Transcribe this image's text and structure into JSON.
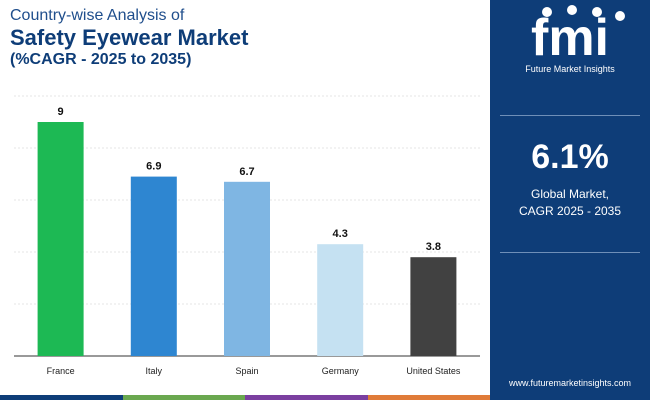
{
  "title": {
    "line1": "Country-wise Analysis of",
    "line2": "Safety Eyewear Market",
    "line3": "(%CAGR - 2025 to 2035)"
  },
  "chart_data": {
    "type": "bar",
    "title": "Country-wise Analysis of Safety Eyewear Market (%CAGR - 2025 to 2035)",
    "categories": [
      "France",
      "Italy",
      "Spain",
      "Germany",
      "United States"
    ],
    "values": [
      9,
      6.9,
      6.7,
      4.3,
      3.8
    ],
    "value_labels": [
      "9",
      "6.9",
      "6.7",
      "4.3",
      "3.8"
    ],
    "colors": [
      "#1db954",
      "#2e86d1",
      "#7fb6e3",
      "#c5e1f2",
      "#414141"
    ],
    "xlabel": "",
    "ylabel": "",
    "ylim": [
      0,
      10
    ],
    "grid": true
  },
  "brand": {
    "logo_text": "fmi",
    "name": "Future Market Insights",
    "url": "www.futuremarketinsights.com"
  },
  "stat": {
    "value": "6.1%",
    "line1": "Global Market,",
    "line2": "CAGR 2025 - 2035"
  },
  "colors": {
    "panel": "#0e3d78",
    "strip": [
      "#0e3d78",
      "#6aa84f",
      "#7b3fa0",
      "#e07b39"
    ]
  }
}
